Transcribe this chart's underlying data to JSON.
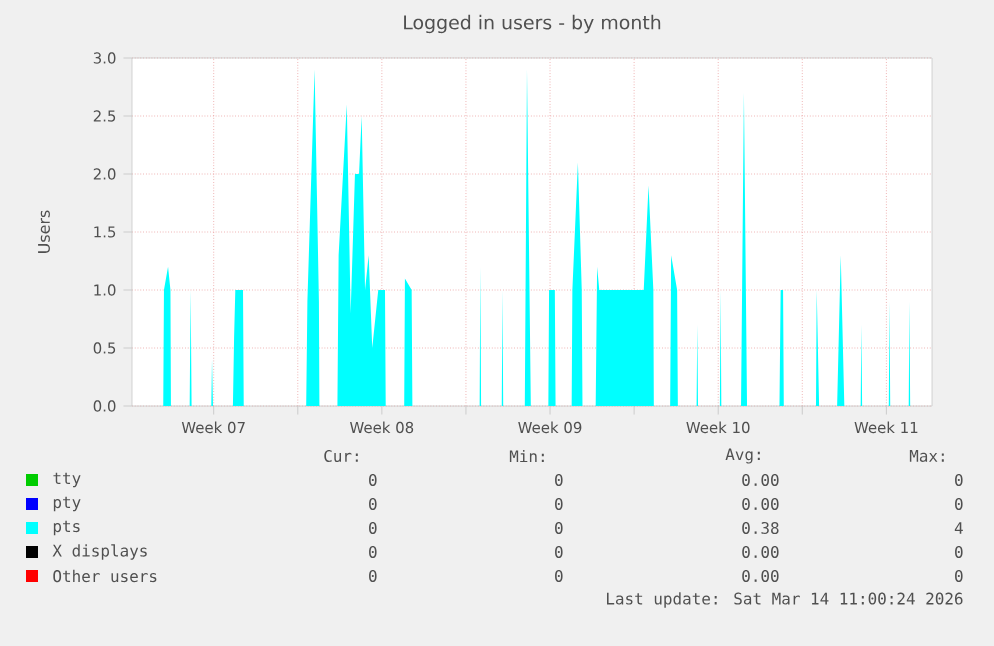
{
  "chart_data": {
    "type": "area",
    "title": "Logged in users - by month",
    "ylabel": "Users",
    "xlim": [
      "2026-02-09T02:24",
      "2026-03-14T09:36"
    ],
    "ylim": [
      0,
      3
    ],
    "xticks": [
      {
        "value": "2026-02-12T12:00",
        "label": "Week 07"
      },
      {
        "value": "2026-02-16T00:00",
        "label": null
      },
      {
        "value": "2026-02-19T12:00",
        "label": "Week 08"
      },
      {
        "value": "2026-02-23T00:00",
        "label": null
      },
      {
        "value": "2026-02-26T12:00",
        "label": "Week 09"
      },
      {
        "value": "2026-03-02T00:00",
        "label": null
      },
      {
        "value": "2026-03-05T12:00",
        "label": "Week 10"
      },
      {
        "value": "2026-03-09T00:00",
        "label": null
      },
      {
        "value": "2026-03-12T12:00",
        "label": "Week 11"
      }
    ],
    "yticks": [
      {
        "value": 0,
        "label": "0.0"
      },
      {
        "value": 0.5,
        "label": "0.5"
      },
      {
        "value": 1,
        "label": "1.0"
      },
      {
        "value": 1.5,
        "label": "1.5"
      },
      {
        "value": 2,
        "label": "2.0"
      },
      {
        "value": 2.5,
        "label": "2.5"
      },
      {
        "value": 3,
        "label": "3.0"
      }
    ],
    "grid": true,
    "legend": "bottom",
    "series": [
      {
        "name": "tty",
        "color": "#00cc00"
      },
      {
        "name": "pty",
        "color": "#0000ff"
      },
      {
        "name": "pts",
        "color": "#00ffff",
        "x": [
          "2026-02-09T02:24",
          "2026-02-10T09:36",
          "2026-02-10T10:19",
          "2026-02-10T14:24",
          "2026-02-10T16:48",
          "2026-02-10T17:17",
          "2026-02-11T12:00",
          "2026-02-11T12:58",
          "2026-02-11T13:55",
          "2026-02-12T09:36",
          "2026-02-12T10:19",
          "2026-02-12T11:17",
          "2026-02-13T07:12",
          "2026-02-13T08:24",
          "2026-02-13T09:36",
          "2026-02-13T17:17",
          "2026-02-13T18:00",
          "2026-02-16T08:24",
          "2026-02-16T09:36",
          "2026-02-16T16:48",
          "2026-02-16T21:07",
          "2026-02-16T21:36",
          "2026-02-17T15:36",
          "2026-02-17T16:48",
          "2026-02-18T00:58",
          "2026-02-18T04:48",
          "2026-02-18T09:07",
          "2026-02-18T13:12",
          "2026-02-18T15:50",
          "2026-02-18T19:12",
          "2026-02-18T22:48",
          "2026-02-19T02:24",
          "2026-02-19T08:24",
          "2026-02-19T15:07",
          "2026-02-19T15:50",
          "2026-02-20T10:19",
          "2026-02-20T11:02",
          "2026-02-20T17:46",
          "2026-02-20T18:29",
          "2026-02-23T13:41",
          "2026-02-23T14:24",
          "2026-02-23T15:07",
          "2026-02-24T11:46",
          "2026-02-24T12:29",
          "2026-02-24T13:12",
          "2026-02-25T10:48",
          "2026-02-25T12:58",
          "2026-02-25T16:48",
          "2026-02-26T10:19",
          "2026-02-26T11:02",
          "2026-02-26T16:48",
          "2026-02-26T17:31",
          "2026-02-27T09:36",
          "2026-02-27T10:19",
          "2026-02-27T15:50",
          "2026-02-27T19:41",
          "2026-02-27T20:24",
          "2026-02-28T09:36",
          "2026-02-28T11:02",
          "2026-02-28T13:12",
          "2026-03-02T09:36",
          "2026-03-02T14:24",
          "2026-03-02T19:12",
          "2026-03-02T19:41",
          "2026-03-03T12:00",
          "2026-03-03T12:58",
          "2026-03-03T18:58",
          "2026-03-03T19:41",
          "2026-03-04T14:24",
          "2026-03-04T15:07",
          "2026-03-04T15:50",
          "2026-03-05T13:41",
          "2026-03-05T14:24",
          "2026-03-05T15:07",
          "2026-03-06T10:48",
          "2026-03-06T13:41",
          "2026-03-06T16:48",
          "2026-03-08T01:12",
          "2026-03-08T02:24",
          "2026-03-08T04:48",
          "2026-03-08T05:31",
          "2026-03-09T13:41",
          "2026-03-09T14:24",
          "2026-03-09T16:48",
          "2026-03-10T10:48",
          "2026-03-10T14:24",
          "2026-03-10T18:00",
          "2026-03-11T10:19",
          "2026-03-11T11:02",
          "2026-03-11T11:46",
          "2026-03-12T14:24",
          "2026-03-12T15:07",
          "2026-03-12T15:50",
          "2026-03-13T10:19",
          "2026-03-13T11:02",
          "2026-03-13T11:46",
          "2026-03-14T09:36"
        ],
        "values": [
          0,
          0,
          1.0,
          1.2,
          1.0,
          0,
          0,
          1.0,
          0,
          0,
          0.4,
          0,
          0,
          0.6,
          1.0,
          1.0,
          0,
          0,
          0.9,
          2.9,
          0.9,
          0,
          0,
          1.3,
          2.6,
          0.8,
          2.0,
          2.0,
          2.5,
          1.0,
          1.3,
          0.5,
          1.0,
          1.0,
          0,
          0,
          1.1,
          1.0,
          0,
          0,
          1.2,
          0,
          0,
          1.0,
          0,
          0,
          2.9,
          0,
          0,
          1.0,
          1.0,
          0,
          0,
          1.0,
          2.1,
          1.0,
          0,
          0,
          1.2,
          1.0,
          1.0,
          1.9,
          1.0,
          0,
          0,
          1.3,
          1.0,
          0,
          0,
          0.7,
          0,
          0,
          1.0,
          0,
          0,
          2.7,
          0,
          0,
          1.0,
          1.0,
          0,
          0,
          1.0,
          0,
          0,
          1.3,
          0,
          0,
          0.7,
          0,
          0,
          0.9,
          0,
          0,
          0.9,
          0,
          0
        ]
      },
      {
        "name": "X displays",
        "color": "#000000"
      },
      {
        "name": "Other users",
        "color": "#ff0000"
      }
    ],
    "annotations": [
      "Cur:",
      "Min:",
      "Avg:",
      "Max:",
      "0",
      "0",
      "0.00",
      "0",
      "0",
      "0",
      "0.00",
      "0",
      "0",
      "0",
      "0.38",
      "4",
      "0",
      "0",
      "0.00",
      "0",
      "0",
      "0",
      "0.00",
      "0",
      "Last update: Sat Mar 14 11:00:24 2026"
    ]
  }
}
